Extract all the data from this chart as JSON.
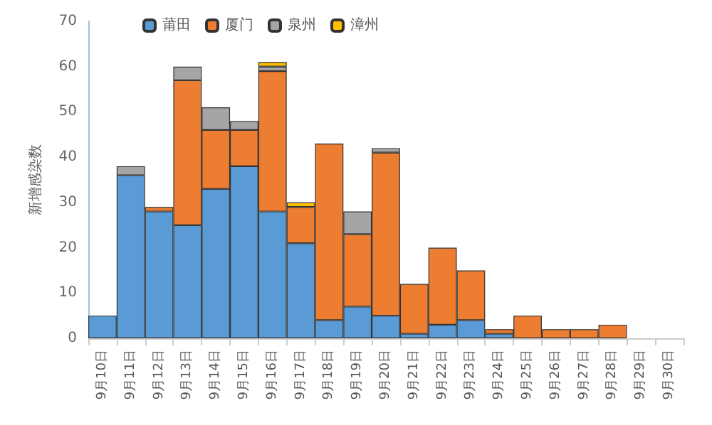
{
  "chart_data": {
    "type": "bar",
    "stacked": true,
    "ylabel": "新增感染数",
    "categories": [
      "9月10日",
      "9月11日",
      "9月12日",
      "9月13日",
      "9月14日",
      "9月15日",
      "9月16日",
      "9月17日",
      "9月18日",
      "9月19日",
      "9月20日",
      "9月21日",
      "9月22日",
      "9月23日",
      "9月24日",
      "9月25日",
      "9月26日",
      "9月27日",
      "9月28日",
      "9月29日",
      "9月30日"
    ],
    "series": [
      {
        "name": "莆田",
        "color": "#5b9bd5",
        "values": [
          5,
          36,
          28,
          25,
          33,
          38,
          28,
          21,
          4,
          7,
          5,
          1,
          3,
          4,
          1,
          null,
          null,
          null,
          null,
          null,
          null
        ]
      },
      {
        "name": "厦门",
        "color": "#ed7d31",
        "values": [
          null,
          null,
          1,
          32,
          13,
          8,
          31,
          8,
          39,
          16,
          36,
          11,
          17,
          11,
          1,
          5,
          2,
          2,
          3,
          null,
          null
        ]
      },
      {
        "name": "泉州",
        "color": "#a5a5a5",
        "values": [
          null,
          2,
          null,
          3,
          5,
          2,
          1,
          null,
          null,
          5,
          1,
          null,
          null,
          null,
          null,
          null,
          null,
          null,
          null,
          null,
          null
        ]
      },
      {
        "name": "漳州",
        "color": "#ffc000",
        "values": [
          null,
          null,
          null,
          null,
          null,
          null,
          1,
          1,
          null,
          null,
          null,
          null,
          null,
          null,
          null,
          null,
          null,
          null,
          null,
          null,
          null
        ]
      }
    ],
    "ylim": [
      0,
      70
    ],
    "yticks": [
      0,
      10,
      20,
      30,
      40,
      50,
      60,
      70
    ],
    "legend": "top",
    "grid": false
  }
}
